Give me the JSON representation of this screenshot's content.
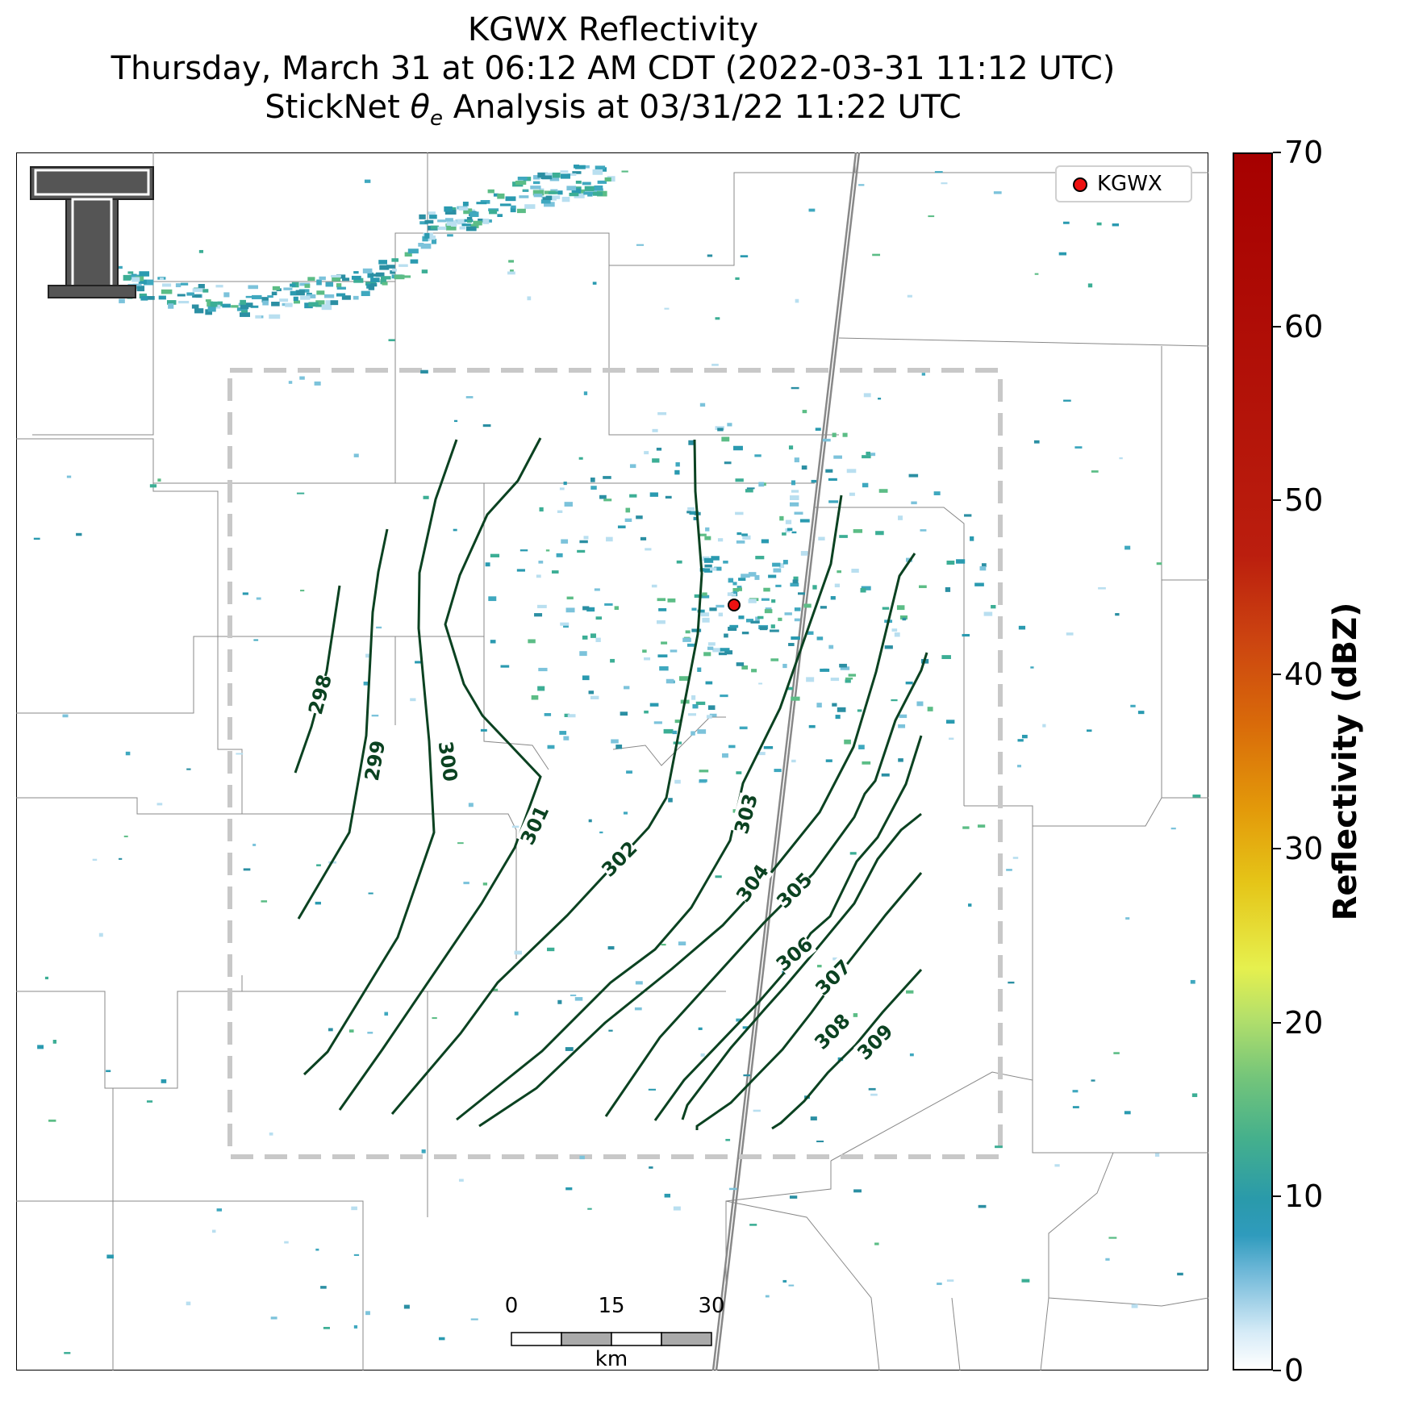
{
  "title": {
    "line1": "KGWX Reflectivity",
    "line2": "Thursday, March 31 at 06:12 AM CDT (2022-03-31 11:12 UTC)",
    "line3_prefix": "StickNet ",
    "line3_symbol": "θ",
    "line3_subscript": "e",
    "line3_suffix": " Analysis at 03/31/22 11:22 UTC"
  },
  "legend": {
    "label": "KGWX",
    "marker_color": "#ee1111"
  },
  "logo": {
    "name": "texas-tech-double-t-logo",
    "text": "T"
  },
  "colorbar": {
    "label": "Reflectivity (dBZ)",
    "ticks": [
      "0",
      "10",
      "20",
      "30",
      "40",
      "50",
      "60",
      "70"
    ],
    "min": 0,
    "max": 70
  },
  "scalebar": {
    "ticks": [
      "0",
      "15",
      "30"
    ],
    "unit": "km"
  },
  "contours": {
    "color": "#0b4221",
    "levels": [
      "298",
      "299",
      "300",
      "301",
      "302",
      "303",
      "304",
      "305",
      "306",
      "307",
      "308",
      "309"
    ]
  },
  "colors": {
    "analysis_box": "#c8c8c8",
    "boundaries": "#888888",
    "echo": "#2a9ab0"
  }
}
